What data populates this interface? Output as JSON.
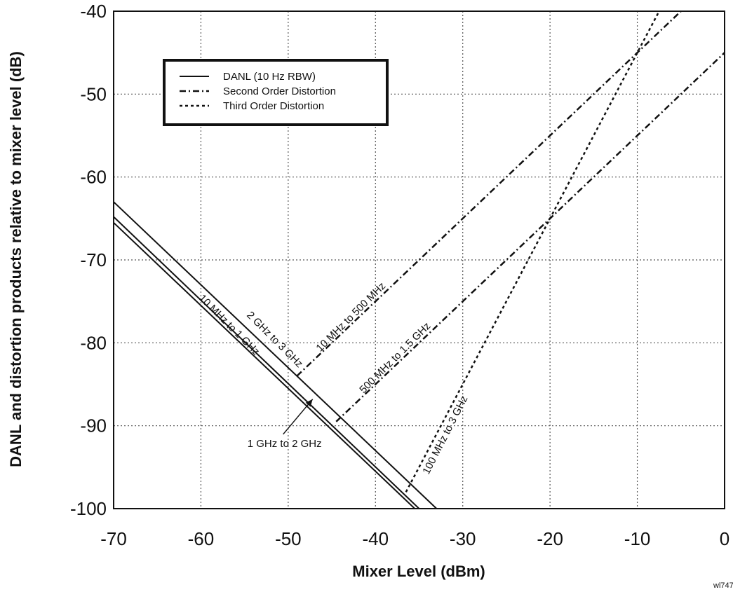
{
  "chart_data": {
    "type": "line",
    "xlabel": "Mixer Level (dBm)",
    "ylabel": "DANL and distortion products relative to mixer level (dB)",
    "xlim": [
      -70,
      0
    ],
    "ylim": [
      -100,
      -40
    ],
    "x_ticks": [
      -70,
      -60,
      -50,
      -40,
      -30,
      -20,
      -10,
      0
    ],
    "y_ticks": [
      -40,
      -50,
      -60,
      -70,
      -80,
      -90,
      -100
    ],
    "grid": true,
    "legend_position": "top-left",
    "legend": [
      {
        "label": "DANL (10 Hz RBW)",
        "style": "solid"
      },
      {
        "label": "Second Order Distortion",
        "style": "dash-dot"
      },
      {
        "label": "Third Order Distortion",
        "style": "dotted"
      }
    ],
    "series": [
      {
        "group": "DANL (10 Hz RBW)",
        "style": "solid",
        "name": "2 GHz to 3 GHz",
        "x": [
          -70,
          -33
        ],
        "y": [
          -63,
          -100
        ]
      },
      {
        "group": "DANL (10 Hz RBW)",
        "style": "solid",
        "name": "1 GHz to 2 GHz",
        "x": [
          -70,
          -35
        ],
        "y": [
          -64.8,
          -100
        ]
      },
      {
        "group": "DANL (10 Hz RBW)",
        "style": "solid",
        "name": "10 MHz to 1 GHz",
        "x": [
          -70,
          -35.5
        ],
        "y": [
          -65.5,
          -100
        ]
      },
      {
        "group": "Second Order Distortion",
        "style": "dash-dot",
        "name": "10 MHz to 500 MHz",
        "x": [
          -49,
          -5
        ],
        "y": [
          -84,
          -40
        ]
      },
      {
        "group": "Second Order Distortion",
        "style": "dash-dot",
        "name": "500 MHz to 1.5 GHz",
        "x": [
          -44.5,
          0
        ],
        "y": [
          -89.5,
          -45
        ]
      },
      {
        "group": "Third Order Distortion",
        "style": "dotted",
        "name": "100 MHz to 3 GHz",
        "x": [
          -36.5,
          -7.5
        ],
        "y": [
          -98,
          -40
        ]
      }
    ],
    "annotations": [
      {
        "text": "2 GHz to 3 GHz",
        "target": "2 GHz to 3 GHz"
      },
      {
        "text": "10 MHz to 1 GHz",
        "target": "10 MHz to 1 GHz"
      },
      {
        "text": "1 GHz to 2 GHz",
        "target": "1 GHz to 2 GHz",
        "arrow": true
      },
      {
        "text": "10 MHz to 500 MHz",
        "target": "10 MHz to 500 MHz"
      },
      {
        "text": "500 MHz to 1.5 GHz",
        "target": "500 MHz to 1.5 GHz"
      },
      {
        "text": "100 MHz to 3 GHz",
        "target": "100 MHz to 3 GHz"
      }
    ],
    "corner_label": "wl747"
  }
}
